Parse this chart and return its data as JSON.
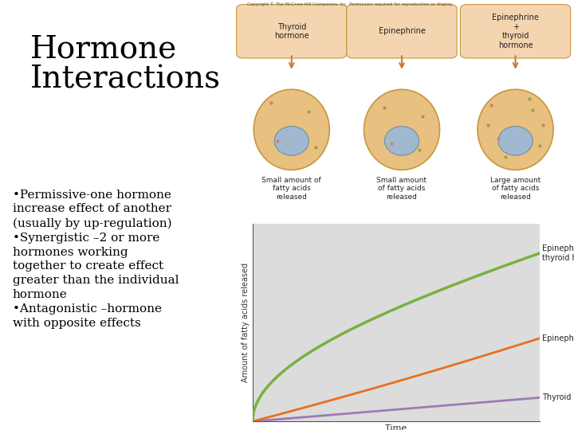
{
  "title": "Hormone\nInteractions",
  "bullet1": "•Permissive-one hormone\nincrease effect of another\n(usually by up-regulation)",
  "bullet2": "•Synergistic –2 or more\nhormones working\ntogether to create effect\ngreater than the individual\nhormone",
  "bullet3": "•Antagonistic –hormone\nwith opposite effects",
  "ylabel": "Amount of fatty acids released",
  "xlabel": "Time",
  "line_combined_color": "#7ab040",
  "line_epi_color": "#e87020",
  "line_thyroid_color": "#9b7bb5",
  "label_combined": "Epinephrine +\nthyroid hormone",
  "label_epi": "Epinephrine",
  "label_thyroid": "Thyroid hormone",
  "background_color": "#ffffff",
  "graph_bg_color": "#dcdcdc",
  "copyright_text": "Copyright © The McGraw-Hill Companies, Inc. Permission required for reproduction or display.",
  "cell_bg_color": "#e8c080",
  "cell_border_color": "#c8963c",
  "nucleus_color": "#a0b8d0",
  "nucleus_border": "#7090a8",
  "box_face_color": "#f5d5b0",
  "box_edge_color": "#c8963c",
  "arrow_color": "#d07830",
  "cell_labels_top": [
    "Thyroid\nhormone",
    "Epinephrine",
    "Epinephrine\n+\nthyroid\nhormone"
  ],
  "cell_labels_bot": [
    "Small amount of\nfatty acids\nreleased",
    "Small amount\nof fatty acids\nreleased",
    "Large amount\nof fatty acids\nreleased"
  ]
}
